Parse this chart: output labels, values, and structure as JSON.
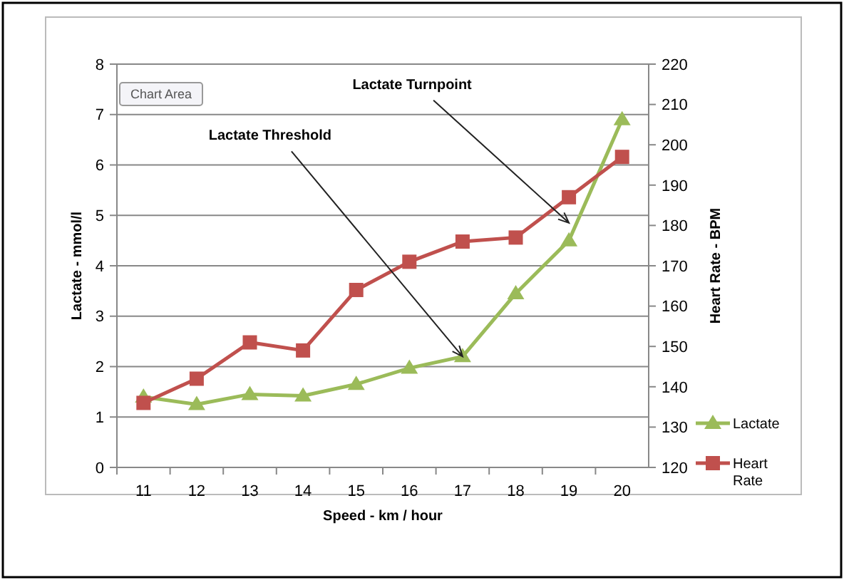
{
  "chart_data": {
    "type": "line",
    "xlabel": "Speed - km / hour",
    "ylabel": "Lactate - mmol/l",
    "y2label": "Heart Rate - BPM",
    "categories": [
      "11",
      "12",
      "13",
      "14",
      "15",
      "16",
      "17",
      "18",
      "19",
      "20"
    ],
    "series": [
      {
        "name": "Lactate",
        "color": "#9bbb59",
        "marker": "triangle",
        "values": [
          1.4,
          1.25,
          1.45,
          1.42,
          1.65,
          1.97,
          2.2,
          3.45,
          4.5,
          6.9
        ]
      },
      {
        "name": "Heart Rate",
        "color": "#c0504d",
        "marker": "square",
        "axis": "y2",
        "values": [
          136,
          142,
          151,
          149,
          164,
          171,
          176,
          177,
          187,
          197
        ]
      }
    ],
    "ylim": [
      0,
      8
    ],
    "yticks": [
      0,
      1,
      2,
      3,
      4,
      5,
      6,
      7,
      8
    ],
    "y2lim": [
      120,
      220
    ],
    "y2ticks": [
      120,
      130,
      140,
      150,
      160,
      170,
      180,
      190,
      200,
      210,
      220
    ],
    "grid": "y",
    "legend": "right",
    "annotations": [
      {
        "text": "Lactate Threshold",
        "x": "17",
        "y": 2.2
      },
      {
        "text": "Lactate Turnpoint",
        "x": "19",
        "y": 4.85
      },
      "Chart Area"
    ]
  }
}
